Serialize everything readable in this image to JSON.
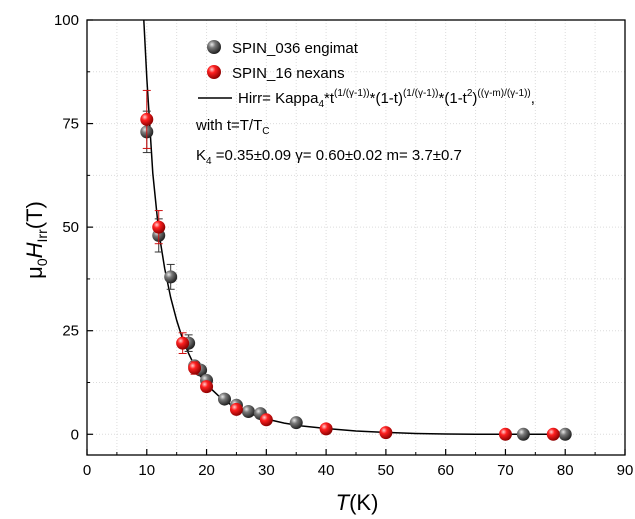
{
  "chart_data": {
    "type": "scatter",
    "xlabel": {
      "italic": "T",
      "rest": "(K)"
    },
    "ylabel": {
      "mu": "μ",
      "zero": "0",
      "H": "H",
      "irr": "Irr",
      "rest": "(T)"
    },
    "xlim": [
      0,
      90
    ],
    "ylim": [
      -5,
      100
    ],
    "xticks": [
      0,
      10,
      20,
      30,
      40,
      50,
      60,
      70,
      80,
      90
    ],
    "yticks": [
      0,
      25,
      50,
      75,
      100
    ],
    "grid": true,
    "legend_position": "top-right",
    "series": [
      {
        "name": "SPIN_036 engimat",
        "marker": "sphere",
        "color": "#4a4a4a",
        "error_bar_color": "#333333",
        "points": [
          {
            "x": 10,
            "y": 73,
            "err": 5
          },
          {
            "x": 12,
            "y": 48,
            "err": 4
          },
          {
            "x": 14,
            "y": 38,
            "err": 3
          },
          {
            "x": 17,
            "y": 22,
            "err": 2
          },
          {
            "x": 18,
            "y": 16.5,
            "err": 1
          },
          {
            "x": 19,
            "y": 15.5,
            "err": 1
          },
          {
            "x": 20,
            "y": 13,
            "err": 1
          },
          {
            "x": 23,
            "y": 8.5,
            "err": 0.8
          },
          {
            "x": 25,
            "y": 7,
            "err": 0.7
          },
          {
            "x": 27,
            "y": 5.5,
            "err": 0.5
          },
          {
            "x": 29,
            "y": 5,
            "err": 0.5
          },
          {
            "x": 35,
            "y": 2.8,
            "err": 0.3
          },
          {
            "x": 73,
            "y": 0,
            "err": 0
          },
          {
            "x": 80,
            "y": 0,
            "err": 0
          }
        ]
      },
      {
        "name": "SPIN_16 nexans",
        "marker": "sphere",
        "color": "#e01010",
        "error_bar_color": "#d01010",
        "points": [
          {
            "x": 10,
            "y": 76,
            "err": 7
          },
          {
            "x": 12,
            "y": 50,
            "err": 4
          },
          {
            "x": 16,
            "y": 22,
            "err": 2.5
          },
          {
            "x": 18,
            "y": 16,
            "err": 1.5
          },
          {
            "x": 20,
            "y": 11.5,
            "err": 1.2
          },
          {
            "x": 25,
            "y": 6,
            "err": 0.8
          },
          {
            "x": 30,
            "y": 3.5,
            "err": 0.5
          },
          {
            "x": 40,
            "y": 1.3,
            "err": 0.3
          },
          {
            "x": 50,
            "y": 0.4,
            "err": 0.1
          },
          {
            "x": 70,
            "y": 0,
            "err": 0
          },
          {
            "x": 78,
            "y": 0,
            "err": 0
          }
        ]
      }
    ],
    "fit": {
      "name": "Hirr= Kappa4*t(1/(γ-1))*(1-t)(1/(γ-1))*(1-t2)((γ-m)/(γ-1)),",
      "color": "#000000",
      "curve": [
        [
          9.5,
          100
        ],
        [
          10,
          86
        ],
        [
          11,
          63
        ],
        [
          12,
          49
        ],
        [
          13,
          40
        ],
        [
          14,
          33
        ],
        [
          15,
          27.5
        ],
        [
          16,
          23
        ],
        [
          17,
          19.5
        ],
        [
          18,
          16.5
        ],
        [
          19,
          14
        ],
        [
          20,
          12
        ],
        [
          22,
          9.3
        ],
        [
          24,
          7.2
        ],
        [
          26,
          5.7
        ],
        [
          28,
          4.6
        ],
        [
          30,
          3.7
        ],
        [
          33,
          2.7
        ],
        [
          36,
          2
        ],
        [
          40,
          1.4
        ],
        [
          45,
          0.8
        ],
        [
          50,
          0.45
        ],
        [
          55,
          0.2
        ],
        [
          60,
          0.08
        ],
        [
          65,
          0.02
        ],
        [
          70,
          0
        ],
        [
          75,
          0
        ],
        [
          80,
          0
        ]
      ]
    },
    "legend": {
      "entry1": "SPIN_036 engimat",
      "entry2": "SPIN_16 nexans",
      "fit_prefix": "Hirr= Kappa",
      "fit_sub4": "4",
      "fit_t": "*t",
      "fit_exp1": "(1/(γ-1))",
      "fit_mid1": "*(1-t)",
      "fit_exp2": "(1/(γ-1))",
      "fit_mid2": "*(1-t",
      "fit_sup2": "2",
      "fit_close": ")",
      "fit_exp3": "((γ-m)/(γ-1))",
      "fit_end": ",",
      "with_prefix": "with t=T/T",
      "with_sub": "C",
      "params_K": "K",
      "params_sub4": "4",
      "params_rest": " =0.35±0.09 γ= 0.60±0.02 m= 3.7±0.7"
    }
  }
}
